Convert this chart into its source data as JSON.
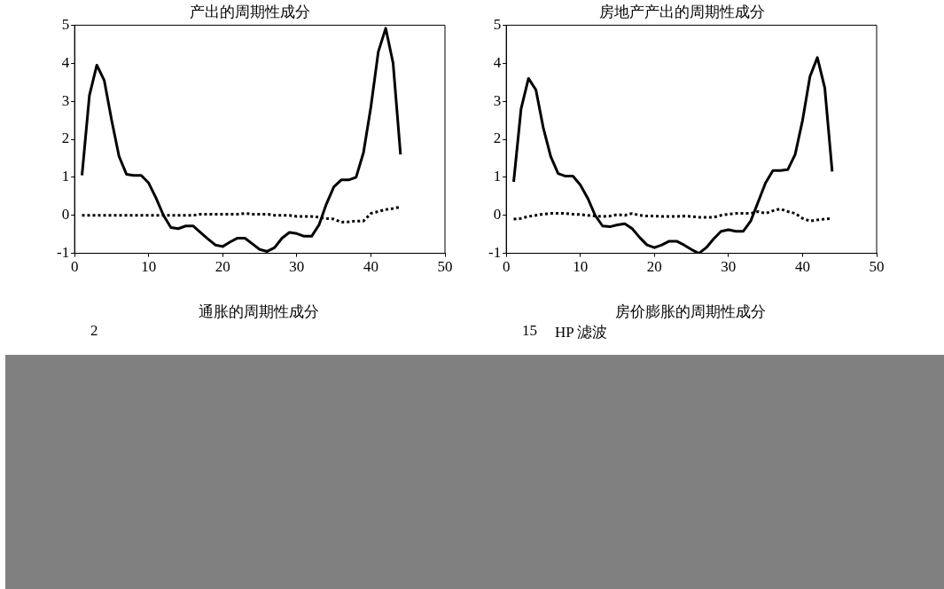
{
  "chart_data": [
    {
      "type": "line",
      "title": "产出的周期性成分",
      "x": [
        1,
        2,
        3,
        4,
        5,
        6,
        7,
        8,
        9,
        10,
        11,
        12,
        13,
        14,
        15,
        16,
        17,
        18,
        19,
        20,
        21,
        22,
        23,
        24,
        25,
        26,
        27,
        28,
        29,
        30,
        31,
        32,
        33,
        34,
        35,
        36,
        37,
        38,
        39,
        40,
        41,
        42,
        43,
        44
      ],
      "xlim": [
        0,
        50
      ],
      "xticks": [
        0,
        10,
        20,
        30,
        40,
        50
      ],
      "ylim": [
        -1,
        5
      ],
      "yticks": [
        -1,
        0,
        1,
        2,
        3,
        4,
        5
      ],
      "grid": false,
      "legend": false,
      "marker": "none",
      "series": [
        {
          "color": "#000000",
          "line_style": "solid",
          "values": [
            1.05,
            3.15,
            3.95,
            3.55,
            2.5,
            1.55,
            1.08,
            1.05,
            1.05,
            0.85,
            0.45,
            0.0,
            -0.32,
            -0.35,
            -0.28,
            -0.28,
            -0.45,
            -0.62,
            -0.78,
            -0.82,
            -0.7,
            -0.6,
            -0.6,
            -0.75,
            -0.9,
            -0.95,
            -0.85,
            -0.6,
            -0.45,
            -0.48,
            -0.55,
            -0.55,
            -0.25,
            0.3,
            0.75,
            0.93,
            0.93,
            1.0,
            1.65,
            2.85,
            4.3,
            4.92,
            4.0,
            1.6
          ]
        },
        {
          "color": "#000000",
          "line_style": "dotted",
          "values": [
            0,
            0,
            0,
            0,
            0,
            0,
            0,
            0,
            0,
            0,
            0,
            0,
            0,
            0,
            0,
            0,
            0.03,
            0.03,
            0.03,
            0.03,
            0.03,
            0.03,
            0.05,
            0.03,
            0.03,
            0.03,
            0,
            0,
            0,
            -0.03,
            -0.03,
            -0.03,
            -0.05,
            -0.08,
            -0.1,
            -0.18,
            -0.17,
            -0.15,
            -0.15,
            0.05,
            0.1,
            0.15,
            0.18,
            0.22
          ]
        }
      ]
    },
    {
      "type": "line",
      "title": "房地产产出的周期性成分",
      "x": [
        1,
        2,
        3,
        4,
        5,
        6,
        7,
        8,
        9,
        10,
        11,
        12,
        13,
        14,
        15,
        16,
        17,
        18,
        19,
        20,
        21,
        22,
        23,
        24,
        25,
        26,
        27,
        28,
        29,
        30,
        31,
        32,
        33,
        34,
        35,
        36,
        37,
        38,
        39,
        40,
        41,
        42,
        43,
        44
      ],
      "xlim": [
        0,
        50
      ],
      "xticks": [
        0,
        10,
        20,
        30,
        40,
        50
      ],
      "ylim": [
        -1,
        5
      ],
      "yticks": [
        -1,
        0,
        1,
        2,
        3,
        4,
        5
      ],
      "grid": false,
      "legend": false,
      "marker": "none",
      "series": [
        {
          "color": "#000000",
          "line_style": "solid",
          "values": [
            0.88,
            2.8,
            3.6,
            3.3,
            2.3,
            1.55,
            1.1,
            1.03,
            1.03,
            0.8,
            0.45,
            0.0,
            -0.28,
            -0.3,
            -0.25,
            -0.22,
            -0.35,
            -0.58,
            -0.78,
            -0.85,
            -0.78,
            -0.68,
            -0.68,
            -0.78,
            -0.9,
            -1.0,
            -0.85,
            -0.62,
            -0.42,
            -0.38,
            -0.42,
            -0.42,
            -0.15,
            0.35,
            0.85,
            1.18,
            1.18,
            1.2,
            1.6,
            2.5,
            3.65,
            4.15,
            3.35,
            1.15
          ]
        },
        {
          "color": "#000000",
          "line_style": "dotted",
          "values": [
            -0.1,
            -0.08,
            -0.03,
            0.0,
            0.03,
            0.05,
            0.05,
            0.05,
            0.03,
            0.02,
            0.0,
            -0.02,
            -0.03,
            -0.02,
            0.02,
            0.0,
            0.05,
            0.0,
            -0.02,
            -0.02,
            -0.03,
            -0.03,
            -0.03,
            -0.02,
            -0.03,
            -0.05,
            -0.05,
            -0.05,
            0.0,
            0.03,
            0.05,
            0.05,
            0.05,
            0.1,
            0.05,
            0.12,
            0.17,
            0.1,
            0.05,
            -0.08,
            -0.15,
            -0.12,
            -0.1,
            -0.08
          ]
        }
      ]
    },
    {
      "type": "other",
      "title": "通胀的周期性成分",
      "annotations": [
        "2"
      ]
    },
    {
      "type": "other",
      "title": "房价膨胀的周期性成分",
      "annotations": [
        "15",
        "HP 滤波"
      ]
    }
  ]
}
